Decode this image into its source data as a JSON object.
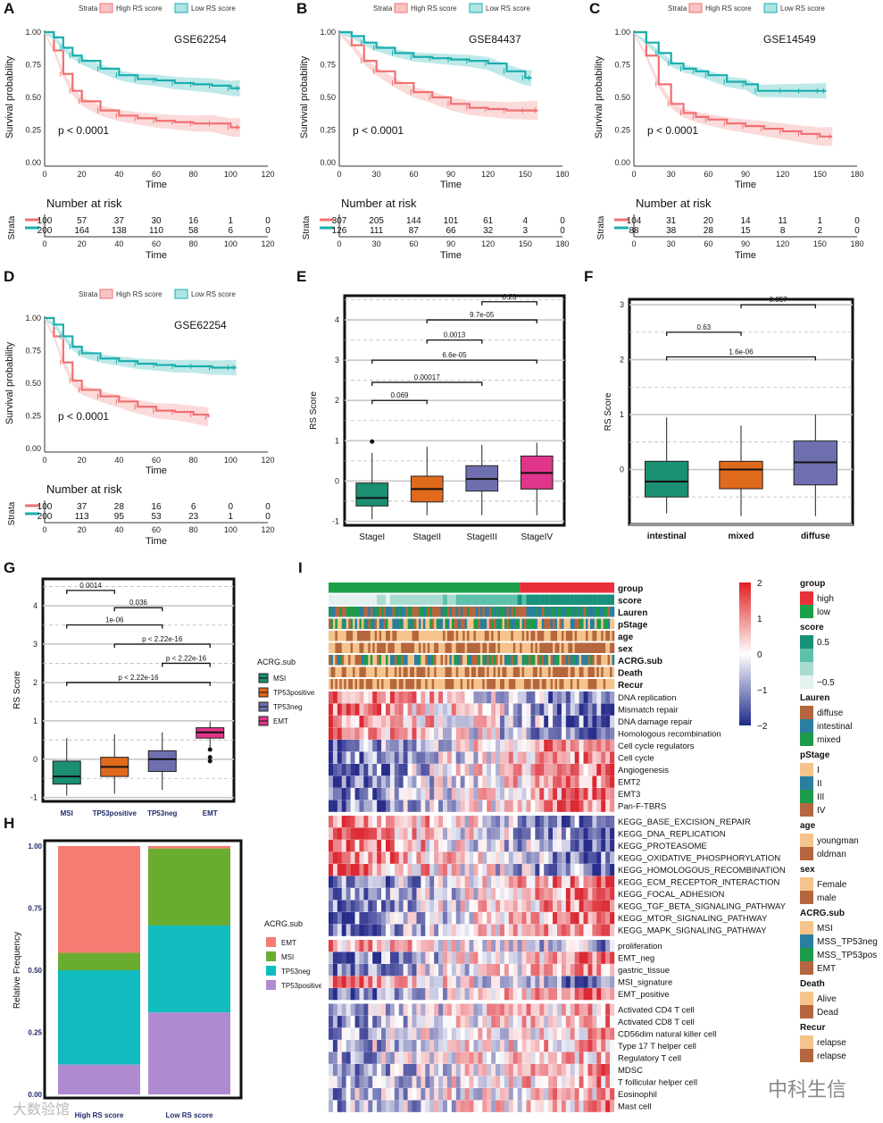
{
  "panel_labels": [
    "A",
    "B",
    "C",
    "D",
    "E",
    "F",
    "G",
    "H",
    "I"
  ],
  "km_legend": {
    "strata": "Strata",
    "high": "High RS score",
    "low": "Low RS score",
    "high_color": "#f07070",
    "low_color": "#1aaeae"
  },
  "km_common": {
    "xlabel": "Time",
    "ylabel": "Survival probability",
    "risk_title": "Number at risk",
    "risk_ylabel": "Strata",
    "yticks": [
      "0.00",
      "0.25",
      "0.50",
      "0.75",
      "1.00"
    ]
  },
  "chart_data": [
    {
      "type": "line",
      "panel": "A",
      "title": "GSE62254",
      "pvalue": "p < 0.0001",
      "xlim": [
        0,
        120
      ],
      "ylim": [
        0,
        1
      ],
      "xticks": [
        0,
        20,
        40,
        60,
        80,
        100,
        120
      ],
      "series": [
        {
          "name": "High RS score",
          "x": [
            0,
            5,
            10,
            15,
            20,
            30,
            40,
            50,
            60,
            70,
            80,
            90,
            100,
            105
          ],
          "y": [
            1,
            0.86,
            0.68,
            0.55,
            0.47,
            0.4,
            0.36,
            0.34,
            0.32,
            0.31,
            0.3,
            0.3,
            0.27,
            0.27
          ]
        },
        {
          "name": "Low RS score",
          "x": [
            0,
            5,
            10,
            15,
            20,
            30,
            40,
            50,
            60,
            70,
            80,
            90,
            100,
            105
          ],
          "y": [
            1,
            0.96,
            0.88,
            0.82,
            0.78,
            0.72,
            0.67,
            0.64,
            0.63,
            0.61,
            0.6,
            0.59,
            0.57,
            0.57
          ]
        }
      ],
      "risk": {
        "times": [
          0,
          20,
          40,
          60,
          80,
          100,
          120
        ],
        "high": [
          "100",
          "57",
          "37",
          "30",
          "16",
          "1",
          "0"
        ],
        "low": [
          "200",
          "164",
          "138",
          "110",
          "58",
          "6",
          "0"
        ]
      }
    },
    {
      "type": "line",
      "panel": "B",
      "title": "GSE84437",
      "pvalue": "p < 0.0001",
      "xlim": [
        0,
        180
      ],
      "ylim": [
        0,
        1
      ],
      "xticks": [
        0,
        30,
        60,
        90,
        120,
        150,
        180
      ],
      "series": [
        {
          "name": "High RS score",
          "x": [
            0,
            10,
            20,
            30,
            45,
            60,
            75,
            90,
            105,
            120,
            135,
            150,
            160
          ],
          "y": [
            1,
            0.9,
            0.78,
            0.7,
            0.61,
            0.54,
            0.5,
            0.45,
            0.42,
            0.41,
            0.4,
            0.4,
            0.4
          ]
        },
        {
          "name": "Low RS score",
          "x": [
            0,
            10,
            20,
            30,
            45,
            60,
            75,
            90,
            105,
            120,
            135,
            150,
            155
          ],
          "y": [
            1,
            0.97,
            0.92,
            0.88,
            0.84,
            0.81,
            0.8,
            0.79,
            0.78,
            0.76,
            0.7,
            0.65,
            0.65
          ]
        }
      ],
      "risk": {
        "times": [
          0,
          30,
          60,
          90,
          120,
          150,
          180
        ],
        "high": [
          "307",
          "205",
          "144",
          "101",
          "61",
          "4",
          "0"
        ],
        "low": [
          "126",
          "111",
          "87",
          "66",
          "32",
          "3",
          "0"
        ]
      }
    },
    {
      "type": "line",
      "panel": "C",
      "title": "GSE14549",
      "pvalue": "p < 0.0001",
      "xlim": [
        0,
        180
      ],
      "ylim": [
        0,
        1
      ],
      "xticks": [
        0,
        30,
        60,
        90,
        120,
        150,
        180
      ],
      "series": [
        {
          "name": "High RS score",
          "x": [
            0,
            10,
            20,
            30,
            40,
            50,
            60,
            75,
            90,
            105,
            120,
            135,
            150,
            160
          ],
          "y": [
            1,
            0.82,
            0.6,
            0.45,
            0.38,
            0.35,
            0.33,
            0.3,
            0.28,
            0.26,
            0.24,
            0.22,
            0.2,
            0.2
          ]
        },
        {
          "name": "Low RS score",
          "x": [
            0,
            10,
            20,
            30,
            40,
            50,
            60,
            75,
            90,
            100,
            120,
            135,
            150,
            155
          ],
          "y": [
            1,
            0.92,
            0.84,
            0.76,
            0.72,
            0.7,
            0.67,
            0.62,
            0.6,
            0.55,
            0.55,
            0.55,
            0.55,
            0.55
          ]
        }
      ],
      "risk": {
        "times": [
          0,
          30,
          60,
          90,
          120,
          150,
          180
        ],
        "high": [
          "104",
          "31",
          "20",
          "14",
          "11",
          "1",
          "0"
        ],
        "low": [
          "88",
          "38",
          "28",
          "15",
          "8",
          "2",
          "0"
        ]
      }
    },
    {
      "type": "line",
      "panel": "D",
      "title": "GSE62254",
      "pvalue": "p < 0.0001",
      "xlim": [
        0,
        120
      ],
      "ylim": [
        0,
        1
      ],
      "xticks": [
        0,
        20,
        40,
        60,
        80,
        100,
        120
      ],
      "series": [
        {
          "name": "High RS score",
          "x": [
            0,
            5,
            10,
            15,
            20,
            30,
            40,
            50,
            60,
            70,
            80,
            88
          ],
          "y": [
            1,
            0.86,
            0.66,
            0.52,
            0.45,
            0.4,
            0.36,
            0.32,
            0.29,
            0.28,
            0.26,
            0.24
          ]
        },
        {
          "name": "Low RS score",
          "x": [
            0,
            5,
            10,
            15,
            20,
            30,
            40,
            50,
            60,
            70,
            80,
            90,
            100,
            103
          ],
          "y": [
            1,
            0.95,
            0.86,
            0.78,
            0.73,
            0.69,
            0.67,
            0.65,
            0.64,
            0.63,
            0.63,
            0.62,
            0.62,
            0.62
          ]
        }
      ],
      "risk": {
        "times": [
          0,
          20,
          40,
          60,
          80,
          100,
          120
        ],
        "high": [
          "100",
          "37",
          "28",
          "16",
          "6",
          "0",
          "0"
        ],
        "low": [
          "200",
          "113",
          "95",
          "53",
          "23",
          "1",
          "0"
        ]
      }
    },
    {
      "type": "box",
      "panel": "E",
      "ylabel": "RS Score",
      "ylim": [
        -1.1,
        4.6
      ],
      "yticks": [
        -1,
        0,
        1,
        2,
        3,
        4
      ],
      "categories": [
        "StageI",
        "StageII",
        "StageIII",
        "StageIV"
      ],
      "colors": [
        "#1a8f72",
        "#e06a1c",
        "#6f6fb0",
        "#e0358a"
      ],
      "boxes": [
        {
          "whislo": -0.95,
          "q1": -0.62,
          "med": -0.42,
          "q3": -0.05,
          "whishi": 0.7,
          "outliers": [
            0.98
          ]
        },
        {
          "whislo": -0.85,
          "q1": -0.52,
          "med": -0.2,
          "q3": 0.12,
          "whishi": 0.85
        },
        {
          "whislo": -0.85,
          "q1": -0.25,
          "med": 0.05,
          "q3": 0.38,
          "whishi": 0.9
        },
        {
          "whislo": -0.85,
          "q1": -0.2,
          "med": 0.2,
          "q3": 0.62,
          "whishi": 0.95
        }
      ],
      "comparisons": [
        {
          "a": 0,
          "b": 1,
          "y": 2.0,
          "label": "0.069"
        },
        {
          "a": 0,
          "b": 2,
          "y": 2.45,
          "label": "0.00017"
        },
        {
          "a": 0,
          "b": 3,
          "y": 3.0,
          "label": "6.6e-05"
        },
        {
          "a": 1,
          "b": 2,
          "y": 3.5,
          "label": "0.0013"
        },
        {
          "a": 1,
          "b": 3,
          "y": 4.0,
          "label": "9.7e-05"
        },
        {
          "a": 2,
          "b": 3,
          "y": 4.45,
          "label": "0.23"
        }
      ]
    },
    {
      "type": "box",
      "panel": "F",
      "ylabel": "RS Score",
      "ylim": [
        -1.0,
        3.1
      ],
      "yticks": [
        0,
        1,
        2,
        3
      ],
      "categories": [
        "intestinal",
        "mixed",
        "diffuse"
      ],
      "colors": [
        "#1a8f72",
        "#e06a1c",
        "#6f6fb0"
      ],
      "boxes": [
        {
          "whislo": -0.8,
          "q1": -0.5,
          "med": -0.22,
          "q3": 0.15,
          "whishi": 0.95
        },
        {
          "whislo": -0.85,
          "q1": -0.35,
          "med": 0.0,
          "q3": 0.15,
          "whishi": 0.8
        },
        {
          "whislo": -0.85,
          "q1": -0.28,
          "med": 0.13,
          "q3": 0.52,
          "whishi": 1.0
        }
      ],
      "comparisons": [
        {
          "a": 0,
          "b": 1,
          "y": 2.5,
          "label": "0.63"
        },
        {
          "a": 0,
          "b": 2,
          "y": 2.05,
          "label": "1.6e-06"
        },
        {
          "a": 1,
          "b": 2,
          "y": 3.0,
          "label": "0.057"
        }
      ]
    },
    {
      "type": "box",
      "panel": "G",
      "ylabel": "RS Score",
      "ylim": [
        -1.1,
        4.7
      ],
      "yticks": [
        -1,
        0,
        1,
        2,
        3,
        4
      ],
      "categories": [
        "MSI",
        "TP53positive",
        "TP53neg",
        "EMT"
      ],
      "colors": [
        "#1a8f72",
        "#e06a1c",
        "#6f6fb0",
        "#e0358a"
      ],
      "legend_title": "ACRG.sub",
      "legend": [
        "MSI",
        "TP53positive",
        "TP53neg",
        "EMT"
      ],
      "boxes": [
        {
          "whislo": -0.95,
          "q1": -0.65,
          "med": -0.45,
          "q3": -0.05,
          "whishi": 0.55
        },
        {
          "whislo": -0.9,
          "q1": -0.45,
          "med": -0.2,
          "q3": 0.05,
          "whishi": 0.65
        },
        {
          "whislo": -0.8,
          "q1": -0.32,
          "med": 0.0,
          "q3": 0.22,
          "whishi": 0.7
        },
        {
          "whislo": 0.25,
          "q1": 0.55,
          "med": 0.7,
          "q3": 0.82,
          "whishi": 0.98,
          "outliers": [
            0.25,
            0.05,
            -0.05
          ]
        }
      ],
      "comparisons": [
        {
          "a": 0,
          "b": 1,
          "y": 4.4,
          "label": "0.0014"
        },
        {
          "a": 1,
          "b": 2,
          "y": 3.95,
          "label": "0.036"
        },
        {
          "a": 0,
          "b": 2,
          "y": 3.5,
          "label": "1e-06"
        },
        {
          "a": 1,
          "b": 3,
          "y": 3.0,
          "label": "p < 2.22e-16"
        },
        {
          "a": 2,
          "b": 3,
          "y": 2.5,
          "label": "p < 2.22e-16"
        },
        {
          "a": 0,
          "b": 3,
          "y": 2.0,
          "label": "p < 2.22e-16"
        }
      ]
    },
    {
      "type": "bar",
      "panel": "H",
      "stacked": true,
      "ylabel": "Relative Frequency",
      "ylim": [
        0,
        1
      ],
      "yticks": [
        "0.00",
        "0.25",
        "0.50",
        "0.75",
        "1.00"
      ],
      "categories": [
        "High RS score",
        "Low RS score"
      ],
      "legend_title": "ACRG.sub",
      "series": [
        {
          "name": "EMT",
          "color": "#f47c72",
          "values": [
            0.43,
            0.01
          ]
        },
        {
          "name": "MSI",
          "color": "#6aac2f",
          "values": [
            0.07,
            0.31
          ]
        },
        {
          "name": "TP53neg",
          "color": "#10bcc0",
          "values": [
            0.38,
            0.35
          ]
        },
        {
          "name": "TP53positive",
          "color": "#b08ad0",
          "values": [
            0.12,
            0.33
          ]
        }
      ]
    },
    {
      "type": "heatmap",
      "panel": "I",
      "scale_ticks": [
        "2",
        "1",
        "0",
        "−1",
        "−2"
      ],
      "annotation_rows": [
        "group",
        "score",
        "Lauren",
        "pStage",
        "age",
        "sex",
        "ACRG.sub",
        "Death",
        "Recur"
      ],
      "groups": [
        {
          "rows": [
            "DNA replication",
            "Mismatch repair",
            "DNA damage repair",
            "Homologous recombination",
            "Cell cycle regulators",
            "Cell cycle",
            "Angiogenesis",
            "EMT2",
            "EMT3",
            "Pan-F-TBRS"
          ]
        },
        {
          "rows": [
            "KEGG_BASE_EXCISION_REPAIR",
            "KEGG_DNA_REPLICATION",
            "KEGG_PROTEASOME",
            "KEGG_OXIDATIVE_PHOSPHORYLATION",
            "KEGG_HOMOLOGOUS_RECOMBINATION",
            "KEGG_ECM_RECEPTOR_INTERACTION",
            "KEGG_FOCAL_ADHESION",
            "KEGG_TGF_BETA_SIGNALING_PATHWAY",
            "KEGG_MTOR_SIGNALING_PATHWAY",
            "KEGG_MAPK_SIGNALING_PATHWAY"
          ]
        },
        {
          "rows": [
            "proliferation",
            "EMT_neg",
            "gastric_tissue",
            "MSI_signature",
            "EMT_positive"
          ]
        },
        {
          "rows": [
            "Activated CD4 T cell",
            "Activated CD8 T cell",
            "CD56dim natural killer cell",
            "Type 17 T helper cell",
            "Regulatory T cell",
            "MDSC",
            "T follicular helper cell",
            "Eosinophil",
            "Mast cell"
          ]
        }
      ],
      "legends": [
        {
          "title": "group",
          "items": [
            {
              "label": "high",
              "color": "#e8303a"
            },
            {
              "label": "low",
              "color": "#1ea04a"
            }
          ]
        },
        {
          "title": "score",
          "items": [
            {
              "label": "0.5",
              "color": "#18907a"
            },
            {
              "label": "",
              "color": "#5cc0aa"
            },
            {
              "label": "",
              "color": "#a8dcd0"
            },
            {
              "label": "−0.5",
              "color": "#e4f2f0"
            }
          ]
        },
        {
          "title": "Lauren",
          "items": [
            {
              "label": "diffuse",
              "color": "#b5663e"
            },
            {
              "label": "intestinal",
              "color": "#2a7ea0"
            },
            {
              "label": "mixed",
              "color": "#1e9a4c"
            }
          ]
        },
        {
          "title": "pStage",
          "items": [
            {
              "label": "I",
              "color": "#f4c48c"
            },
            {
              "label": "II",
              "color": "#2a7ea0"
            },
            {
              "label": "III",
              "color": "#1e9a4c"
            },
            {
              "label": "IV",
              "color": "#b5663e"
            }
          ]
        },
        {
          "title": "age",
          "items": [
            {
              "label": "youngman",
              "color": "#f4c48c"
            },
            {
              "label": "oldman",
              "color": "#b5663e"
            }
          ]
        },
        {
          "title": "sex",
          "items": [
            {
              "label": "Female",
              "color": "#f4c48c"
            },
            {
              "label": "male",
              "color": "#b5663e"
            }
          ]
        },
        {
          "title": "ACRG.sub",
          "items": [
            {
              "label": "MSI",
              "color": "#f4c48c"
            },
            {
              "label": "MSS_TP53neg",
              "color": "#2a7ea0"
            },
            {
              "label": "MSS_TP53pos",
              "color": "#1e9a4c"
            },
            {
              "label": "EMT",
              "color": "#b5663e"
            }
          ]
        },
        {
          "title": "Death",
          "items": [
            {
              "label": "Alive",
              "color": "#f4c48c"
            },
            {
              "label": "Dead",
              "color": "#b5663e"
            }
          ]
        },
        {
          "title": "Recur",
          "items": [
            {
              "label": "relapse",
              "color": "#f4c48c"
            },
            {
              "label": "relapse",
              "color": "#b5663e"
            }
          ]
        }
      ]
    }
  ],
  "watermark": {
    "left": "大数验馆",
    "right": "中科生信"
  }
}
